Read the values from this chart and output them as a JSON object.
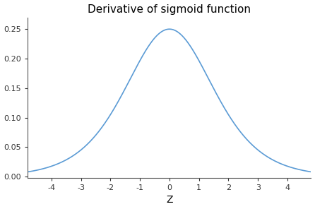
{
  "title": "Derivative of sigmoid function",
  "xlabel": "Z",
  "xlim": [
    -4.8,
    4.8
  ],
  "ylim": [
    -0.002,
    0.27
  ],
  "xticks": [
    -4,
    -3,
    -2,
    -1,
    0,
    1,
    2,
    3,
    4
  ],
  "yticks": [
    0.0,
    0.05,
    0.1,
    0.15,
    0.2,
    0.25
  ],
  "line_color": "#5b9bd5",
  "line_width": 1.2,
  "background_color": "#ffffff",
  "title_fontsize": 11,
  "label_fontsize": 10,
  "tick_fontsize": 8,
  "spine_color": "#555555"
}
